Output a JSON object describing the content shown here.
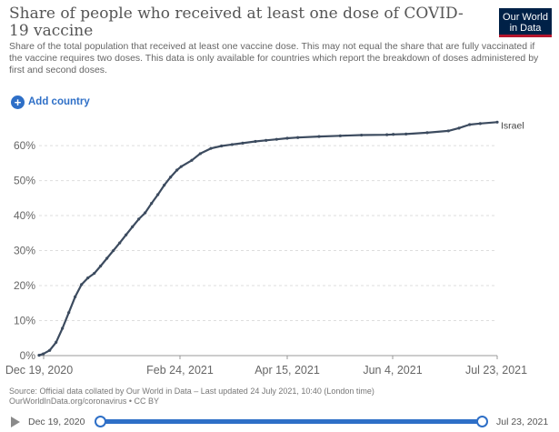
{
  "header": {
    "title": "Share of people who received at least one dose of COVID-19 vaccine",
    "subtitle": "Share of the total population that received at least one vaccine dose. This may not equal the share that are fully vaccinated if the vaccine requires two doses. This data is only available for countries which report the breakdown of doses administered by first and second doses.",
    "logo_line1": "Our World",
    "logo_line2": "in Data"
  },
  "controls": {
    "add_country_label": "Add country"
  },
  "chart_data": {
    "type": "line",
    "x_axis": {
      "ticks": [
        "Dec 19, 2020",
        "Feb 24, 2021",
        "Apr 15, 2021",
        "Jun 4, 2021",
        "Jul 23, 2021"
      ],
      "range": [
        "2020-12-19",
        "2021-07-23"
      ]
    },
    "y_axis": {
      "ticks": [
        "0%",
        "10%",
        "20%",
        "30%",
        "40%",
        "50%",
        "60%"
      ],
      "range": [
        0,
        66
      ]
    },
    "grid": "horizontal-dashed",
    "series": [
      {
        "name": "Israel",
        "color": "#3c4b5f",
        "x": [
          "2020-12-19",
          "2020-12-21",
          "2020-12-24",
          "2020-12-27",
          "2020-12-30",
          "2021-01-02",
          "2021-01-05",
          "2021-01-08",
          "2021-01-11",
          "2021-01-14",
          "2021-01-17",
          "2021-01-20",
          "2021-01-23",
          "2021-01-26",
          "2021-01-29",
          "2021-02-01",
          "2021-02-04",
          "2021-02-07",
          "2021-02-10",
          "2021-02-13",
          "2021-02-16",
          "2021-02-19",
          "2021-02-22",
          "2021-02-24",
          "2021-03-01",
          "2021-03-05",
          "2021-03-10",
          "2021-03-15",
          "2021-03-20",
          "2021-03-25",
          "2021-03-31",
          "2021-04-05",
          "2021-04-10",
          "2021-04-15",
          "2021-04-20",
          "2021-04-30",
          "2021-05-10",
          "2021-05-20",
          "2021-06-01",
          "2021-06-04",
          "2021-06-10",
          "2021-06-20",
          "2021-06-30",
          "2021-07-05",
          "2021-07-10",
          "2021-07-15",
          "2021-07-23"
        ],
        "y": [
          0.1,
          0.5,
          1.5,
          3.8,
          7.8,
          12.3,
          16.8,
          20.3,
          22.2,
          23.5,
          25.6,
          27.8,
          30.0,
          32.2,
          34.5,
          36.8,
          39.0,
          40.8,
          43.5,
          46.0,
          48.7,
          51.0,
          53.0,
          54.0,
          55.8,
          57.7,
          59.2,
          59.9,
          60.3,
          60.7,
          61.2,
          61.5,
          61.8,
          62.1,
          62.3,
          62.6,
          62.8,
          63.0,
          63.1,
          63.2,
          63.3,
          63.7,
          64.2,
          65.0,
          66.0,
          66.3,
          66.7
        ]
      }
    ]
  },
  "footer": {
    "source_line1": "Source: Official data collated by Our World in Data – Last updated 24 July 2021, 10:40 (London time)",
    "source_line2": "OurWorldInData.org/coronavirus • CC BY"
  },
  "timeline": {
    "start_label": "Dec 19, 2020",
    "end_label": "Jul 23, 2021"
  }
}
